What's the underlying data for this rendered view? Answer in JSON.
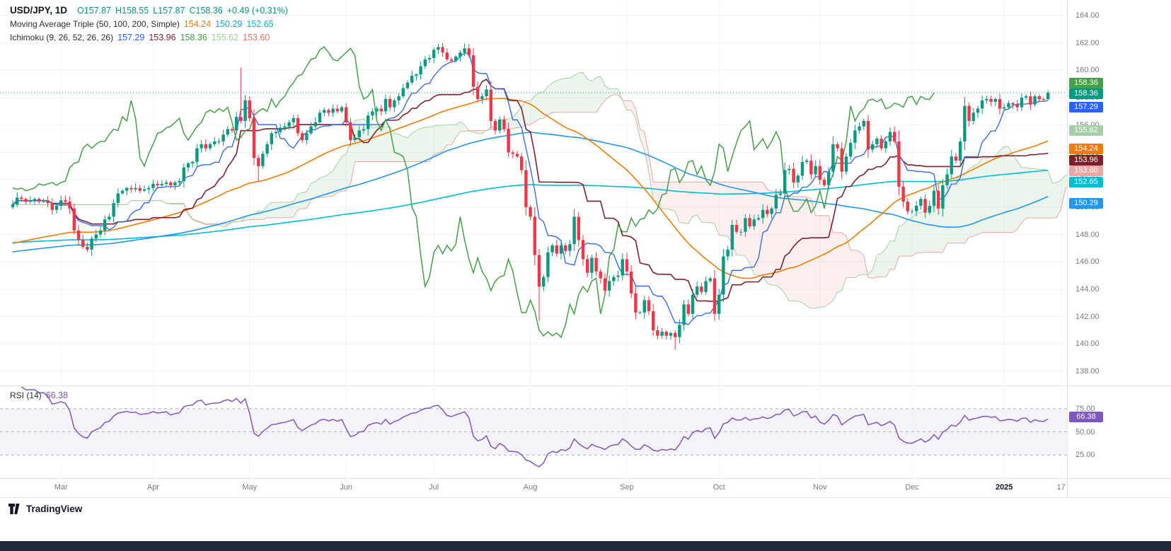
{
  "colors": {
    "up": "#089981",
    "down": "#f23645",
    "grid": "#f0f3fa",
    "axis_text": "#787b86",
    "border": "#e0e3eb",
    "text": "#131722",
    "sma50": "#f57c00",
    "sma100": "#2196f3",
    "sma200": "#00bcd4",
    "conversion": "#2962ff",
    "base": "#7e1f2e",
    "lagging": "#43a047",
    "lead_a": "#a5cfa8",
    "lead_b": "#eba6a6",
    "cloud_green": "rgba(67,160,71,0.10)",
    "cloud_red": "rgba(239,83,80,0.09)",
    "rsi": "#7e57c2",
    "rsi_band": "rgba(126,87,194,0.08)",
    "price_line": "#089981",
    "bottom_bar": "#20293c"
  },
  "legend": {
    "symbol": "USD/JPY, 1D",
    "ohlc": {
      "o": "O157.87",
      "h": "H158.55",
      "l": "L157.87",
      "c": "C158.36",
      "change": "+0.49 (+0.31%)"
    },
    "ma": {
      "label": "Moving Average Triple (50, 100, 200, Simple)",
      "values": [
        "154.24",
        "150.29",
        "152.65"
      ],
      "colors": [
        "#f57c00",
        "#2196f3",
        "#00bcd4"
      ]
    },
    "ichimoku": {
      "label": "Ichimoku (9, 26, 52, 26, 26)",
      "values": [
        "157.29",
        "153.96",
        "158.36",
        "155.62",
        "153.60"
      ],
      "colors": [
        "#2962ff",
        "#7e1f2e",
        "#43a047",
        "#9ccc9c",
        "#e57373"
      ]
    }
  },
  "rsi_pane": {
    "label": "RSI (14)",
    "value": "66.38",
    "tag_value": 66.38,
    "levels": [
      "75.00",
      "50.00",
      "25.00"
    ],
    "level_values": [
      75,
      50,
      25
    ]
  },
  "price_axis": {
    "tick_labels": [
      "164.00",
      "162.00",
      "160.00",
      "158.00",
      "156.00",
      "154.00",
      "152.00",
      "150.00",
      "148.00",
      "146.00",
      "144.00",
      "142.00",
      "140.00",
      "138.00"
    ],
    "tags": [
      {
        "label": "158.36",
        "price": 158.36,
        "color": "#43a047",
        "name": "lagging-span-price-tag"
      },
      {
        "label": "158.36",
        "price": 158.36,
        "color": "#089981",
        "name": "last-price-tag"
      },
      {
        "label": "157.29",
        "price": 157.29,
        "color": "#2962ff",
        "name": "conversion-line-price-tag"
      },
      {
        "label": "155.62",
        "price": 155.62,
        "color": "#a5cfa8",
        "name": "leading-span-a-price-tag"
      },
      {
        "label": "154.24",
        "price": 154.24,
        "color": "#f57c00",
        "name": "sma50-price-tag"
      },
      {
        "label": "153.96",
        "price": 153.96,
        "color": "#7e1f2e",
        "name": "base-line-price-tag"
      },
      {
        "label": "153.60",
        "price": 153.6,
        "color": "#eba6a6",
        "name": "leading-span-b-price-tag"
      },
      {
        "label": "152.65",
        "price": 152.65,
        "color": "#00bcd4",
        "name": "sma200-price-tag"
      },
      {
        "label": "150.29",
        "price": 150.29,
        "color": "#2196f3",
        "name": "sma100-price-tag"
      }
    ]
  },
  "time_axis": {
    "labels": [
      {
        "text": "Mar",
        "i": 11
      },
      {
        "text": "Apr",
        "i": 32
      },
      {
        "text": "May",
        "i": 54
      },
      {
        "text": "Jun",
        "i": 76
      },
      {
        "text": "Jul",
        "i": 96
      },
      {
        "text": "Aug",
        "i": 118
      },
      {
        "text": "Sep",
        "i": 140
      },
      {
        "text": "Oct",
        "i": 161
      },
      {
        "text": "Nov",
        "i": 184
      },
      {
        "text": "Dec",
        "i": 205
      },
      {
        "text": "2025",
        "i": 226,
        "bold": true
      },
      {
        "text": "17",
        "i": 239
      }
    ]
  },
  "footer": {
    "brand": "TradingView"
  },
  "chart_data": {
    "type": "candlestick",
    "symbol": "USD/JPY",
    "interval": "1D",
    "title": "USD/JPY, 1D",
    "last_bar": {
      "open": 157.87,
      "high": 158.55,
      "low": 157.87,
      "close": 158.36,
      "change": 0.49,
      "change_pct": 0.31
    },
    "y_axis": {
      "min": 138,
      "max": 164,
      "tick": 2
    },
    "grid": true,
    "legend_position": "top-left",
    "indicators": {
      "sma": {
        "periods": [
          50,
          100,
          200
        ],
        "last_values": [
          154.24,
          150.29,
          152.65
        ]
      },
      "ichimoku": {
        "params": [
          9,
          26,
          52,
          26,
          26
        ],
        "last_values": {
          "conversion": 157.29,
          "base": 153.96,
          "lagging": 158.36,
          "lead_a": 155.62,
          "lead_b": 153.6
        }
      },
      "rsi": {
        "period": 14,
        "last_value": 66.38,
        "levels": [
          75,
          50,
          25
        ]
      }
    },
    "closes": [
      150.2,
      150.7,
      150.6,
      150.4,
      150.5,
      150.6,
      150.4,
      150.5,
      150.3,
      149.8,
      150.1,
      150.5,
      150.4,
      149.9,
      148.3,
      147.6,
      147.1,
      146.9,
      147.7,
      148.0,
      148.3,
      149.1,
      149.3,
      150.3,
      151.0,
      151.2,
      151.4,
      151.3,
      151.4,
      151.2,
      151.3,
      151.4,
      151.7,
      151.6,
      151.7,
      151.8,
      151.6,
      151.8,
      151.9,
      152.9,
      153.2,
      153.3,
      154.3,
      154.6,
      154.3,
      154.6,
      154.8,
      154.8,
      155.3,
      155.7,
      155.6,
      156.6,
      156.3,
      157.8,
      156.5,
      153.6,
      153.0,
      153.9,
      154.6,
      155.4,
      155.5,
      155.8,
      155.9,
      156.2,
      156.5,
      155.4,
      154.9,
      155.4,
      155.9,
      156.2,
      156.9,
      157.1,
      156.9,
      157.2,
      157.0,
      157.3,
      156.2,
      154.9,
      155.1,
      155.6,
      155.7,
      156.7,
      157.0,
      157.2,
      157.0,
      157.9,
      157.3,
      157.8,
      158.1,
      158.7,
      159.1,
      159.6,
      159.7,
      160.3,
      160.8,
      160.9,
      161.5,
      161.7,
      161.3,
      160.8,
      160.7,
      161.0,
      161.3,
      161.6,
      161.1,
      158.8,
      157.9,
      158.1,
      158.6,
      156.3,
      155.6,
      156.4,
      155.7,
      154.0,
      153.9,
      153.7,
      152.7,
      150.0,
      149.3,
      146.5,
      144.2,
      144.9,
      146.7,
      147.2,
      146.6,
      147.2,
      146.8,
      147.3,
      149.3,
      147.6,
      146.2,
      145.2,
      146.3,
      145.3,
      144.8,
      143.9,
      144.6,
      144.9,
      145.0,
      146.2,
      145.3,
      143.7,
      142.3,
      142.3,
      143.2,
      142.4,
      141.0,
      140.6,
      140.9,
      140.6,
      140.8,
      140.5,
      141.4,
      142.9,
      142.2,
      143.6,
      144.2,
      143.8,
      144.6,
      144.8,
      142.2,
      143.6,
      146.4,
      146.9,
      148.7,
      148.2,
      148.2,
      149.2,
      148.6,
      149.1,
      149.2,
      149.8,
      149.5,
      149.9,
      150.9,
      151.0,
      152.7,
      152.8,
      151.8,
      152.3,
      153.3,
      153.4,
      152.4,
      153.0,
      152.0,
      151.6,
      152.6,
      154.6,
      154.3,
      152.6,
      153.7,
      154.7,
      155.6,
      155.9,
      156.3,
      154.2,
      154.6,
      155.0,
      154.3,
      154.8,
      155.5,
      154.8,
      151.5,
      150.4,
      149.7,
      149.7,
      150.1,
      150.6,
      149.6,
      150.1,
      151.2,
      149.9,
      151.6,
      152.4,
      153.7,
      153.4,
      154.8,
      157.4,
      156.3,
      156.9,
      157.2,
      157.8,
      157.9,
      157.7,
      157.9,
      157.2,
      157.3,
      157.6,
      157.5,
      157.3,
      158.0,
      158.1,
      157.5,
      158.1,
      157.9,
      157.87,
      158.36
    ],
    "wick_overrides": {
      "52": {
        "high": 160.2
      },
      "56": {
        "low": 151.86
      },
      "97": {
        "high": 161.95
      },
      "120": {
        "low": 141.68
      },
      "151": {
        "low": 139.58
      },
      "236": {
        "open": 157.87,
        "high": 158.55,
        "low": 157.87
      }
    }
  }
}
